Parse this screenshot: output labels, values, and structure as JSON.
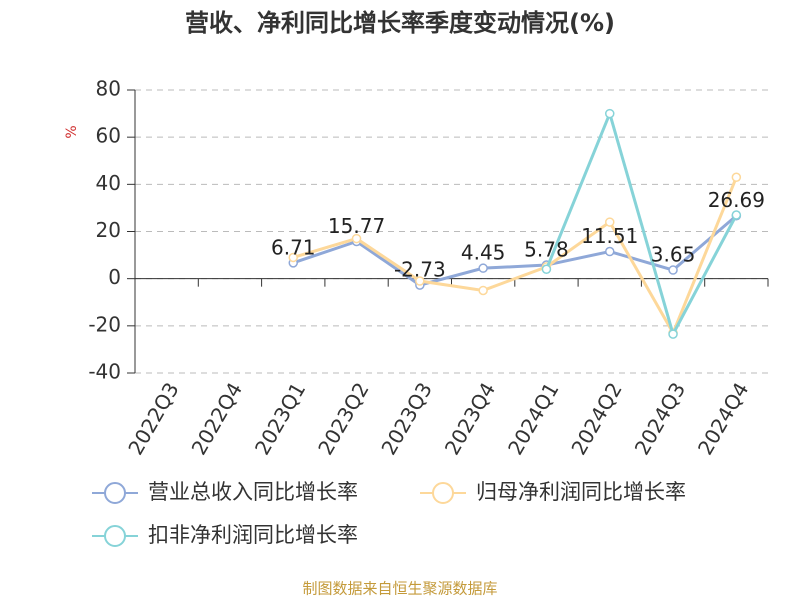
{
  "chart_data": {
    "type": "line",
    "title": "营收、净利同比增长率季度变动情况(%)",
    "y_label": "%",
    "categories": [
      "2022Q3",
      "2022Q4",
      "2023Q1",
      "2023Q2",
      "2023Q3",
      "2023Q4",
      "2024Q1",
      "2024Q2",
      "2024Q3",
      "2024Q4"
    ],
    "series": [
      {
        "name": "营业总收入同比增长率",
        "color": "#8fa8d8",
        "values": [
          null,
          null,
          6.71,
          15.77,
          -2.73,
          4.45,
          5.78,
          11.51,
          3.65,
          26.69
        ],
        "show_labels": true
      },
      {
        "name": "归母净利润同比增长率",
        "color": "#fdd89a",
        "values": [
          null,
          null,
          9,
          17,
          -1,
          -5,
          5,
          24,
          -23,
          43
        ],
        "show_labels": false
      },
      {
        "name": "扣非净利润同比增长率",
        "color": "#86d3d8",
        "values": [
          null,
          null,
          null,
          null,
          null,
          null,
          4,
          70,
          -23.5,
          27
        ],
        "show_labels": false
      }
    ],
    "ylim": [
      -40,
      80
    ],
    "yticks": [
      -40,
      -20,
      0,
      20,
      40,
      60,
      80
    ],
    "grid": true,
    "source": "制图数据来自恒生聚源数据库"
  }
}
